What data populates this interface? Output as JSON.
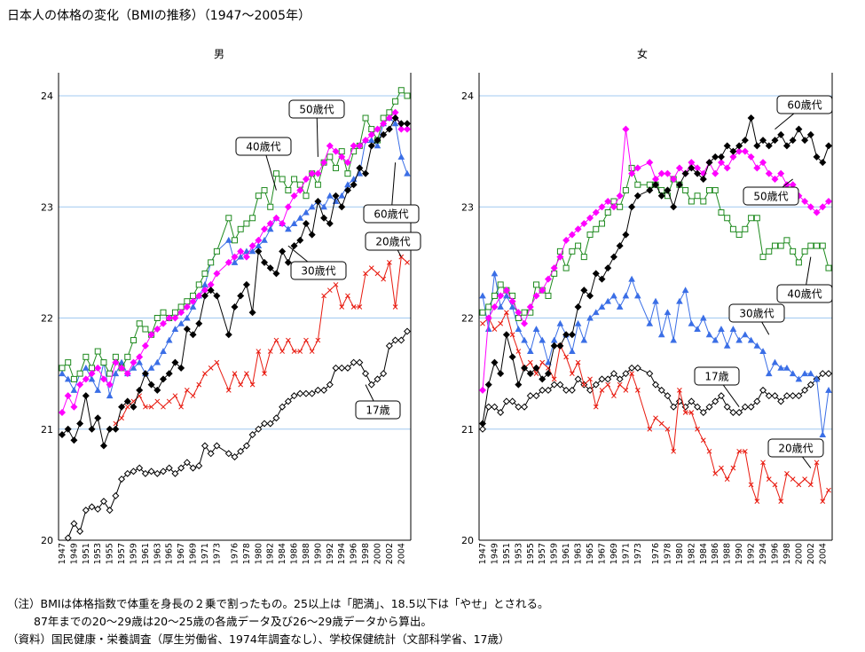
{
  "title": "日本人の体格の変化（BMIの推移）（1947〜2005年）",
  "notes": [
    "（注）BMIは体格指数で体重を身長の２乗で割ったもの。25以上は「肥満」、18.5以下は「やせ」とされる。",
    "87年までの20〜29歳は20〜25歳の各歳データ及び26〜29歳データから算出。",
    "（資料）国民健康・栄養調査（厚生労働省、1974年調査なし）、学校保健統計（文部科学省、17歳）"
  ],
  "colors": {
    "age17": "#000000",
    "age20": "#e8190e",
    "age30": "#3a6ee6",
    "age40": "#1e8a1e",
    "age50": "#ff00ff",
    "age60": "#000000",
    "grid": "#a0c8f0"
  },
  "chart_data": [
    {
      "type": "line",
      "title": "男",
      "ylim": [
        20,
        24
      ],
      "yticks": [
        "20",
        "21",
        "22",
        "23",
        "24"
      ],
      "xlabels": [
        "1947",
        "1949",
        "1951",
        "1953",
        "1955",
        "1957",
        "1959",
        "1961",
        "1963",
        "1965",
        "1967",
        "1969",
        "1971",
        "1973",
        "1976",
        "1978",
        "1980",
        "1982",
        "1984",
        "1986",
        "1988",
        "1990",
        "1992",
        "1994",
        "1996",
        "1998",
        "2000",
        "2002",
        "2004"
      ],
      "x": [
        1947,
        1948,
        1949,
        1950,
        1951,
        1952,
        1953,
        1954,
        1955,
        1956,
        1957,
        1958,
        1959,
        1960,
        1961,
        1962,
        1963,
        1964,
        1965,
        1966,
        1967,
        1968,
        1969,
        1970,
        1971,
        1972,
        1973,
        1975,
        1976,
        1977,
        1978,
        1979,
        1980,
        1981,
        1982,
        1983,
        1984,
        1985,
        1986,
        1987,
        1988,
        1989,
        1990,
        1991,
        1992,
        1993,
        1994,
        1995,
        1996,
        1997,
        1998,
        1999,
        2000,
        2001,
        2002,
        2003,
        2004,
        2005
      ],
      "series": [
        {
          "name": "17歳",
          "key": "age17",
          "marker": "diamond-open",
          "values": [
            null,
            20.02,
            20.15,
            20.08,
            20.27,
            20.3,
            20.28,
            20.35,
            20.27,
            20.4,
            20.55,
            20.6,
            20.62,
            20.65,
            20.6,
            20.62,
            20.6,
            20.62,
            20.65,
            20.6,
            20.65,
            20.7,
            20.65,
            20.67,
            20.85,
            20.78,
            20.85,
            20.78,
            20.75,
            20.8,
            20.85,
            20.95,
            21.0,
            21.05,
            21.05,
            21.1,
            21.2,
            21.25,
            21.3,
            21.32,
            21.32,
            21.32,
            21.35,
            21.35,
            21.4,
            21.55,
            21.55,
            21.55,
            21.6,
            21.6,
            21.5,
            21.4,
            21.45,
            21.5,
            21.75,
            21.8,
            21.8,
            21.88
          ]
        },
        {
          "name": "20歳代",
          "key": "age20",
          "marker": "x",
          "values": [
            null,
            null,
            null,
            null,
            null,
            null,
            null,
            null,
            null,
            21.05,
            21.1,
            21.2,
            21.25,
            21.3,
            21.2,
            21.2,
            21.25,
            21.2,
            21.25,
            21.3,
            21.2,
            21.35,
            21.3,
            21.4,
            21.5,
            21.55,
            21.6,
            21.35,
            21.5,
            21.4,
            21.5,
            21.4,
            21.7,
            21.5,
            21.7,
            21.8,
            21.7,
            21.8,
            21.7,
            21.7,
            21.8,
            21.7,
            21.8,
            22.2,
            22.25,
            22.3,
            22.1,
            22.2,
            22.1,
            22.1,
            22.4,
            22.45,
            22.4,
            22.35,
            22.5,
            22.1,
            22.55,
            22.5
          ]
        },
        {
          "name": "30歳代",
          "key": "age30",
          "marker": "triangle",
          "values": [
            21.5,
            21.45,
            21.35,
            21.5,
            21.55,
            21.45,
            21.35,
            21.6,
            21.3,
            21.5,
            21.6,
            21.5,
            21.55,
            21.6,
            21.5,
            21.55,
            21.6,
            21.7,
            21.8,
            21.9,
            21.95,
            22.0,
            22.1,
            22.2,
            22.3,
            22.5,
            22.6,
            22.7,
            22.5,
            22.55,
            22.6,
            22.6,
            22.65,
            22.7,
            22.8,
            22.9,
            22.85,
            22.8,
            22.85,
            22.9,
            22.95,
            23.0,
            23.05,
            23.0,
            23.1,
            23.05,
            23.1,
            23.2,
            23.25,
            23.3,
            23.6,
            23.6,
            23.55,
            23.75,
            23.8,
            23.75,
            23.45,
            23.3
          ]
        },
        {
          "name": "40歳代",
          "key": "age40",
          "marker": "square-open",
          "values": [
            21.55,
            21.6,
            21.45,
            21.5,
            21.65,
            21.55,
            21.7,
            21.6,
            21.5,
            21.65,
            21.55,
            21.65,
            21.8,
            21.95,
            21.9,
            21.85,
            22.0,
            22.05,
            22.0,
            22.05,
            22.1,
            22.15,
            22.2,
            22.3,
            22.4,
            22.5,
            22.6,
            22.9,
            22.7,
            22.8,
            22.85,
            22.9,
            23.1,
            23.15,
            23.0,
            23.3,
            23.25,
            23.15,
            23.25,
            23.2,
            23.1,
            23.3,
            23.2,
            23.4,
            23.45,
            23.35,
            23.5,
            23.3,
            23.5,
            23.55,
            23.8,
            23.7,
            23.6,
            23.8,
            23.85,
            23.95,
            24.05,
            24.0
          ]
        },
        {
          "name": "50歳代",
          "key": "age50",
          "marker": "diamond",
          "values": [
            21.15,
            21.3,
            21.2,
            21.4,
            21.45,
            21.5,
            21.55,
            21.45,
            21.4,
            21.6,
            21.55,
            21.5,
            21.6,
            21.65,
            21.75,
            21.85,
            21.9,
            21.95,
            22.0,
            22.0,
            22.05,
            22.1,
            22.15,
            22.2,
            22.25,
            22.3,
            22.4,
            22.5,
            22.55,
            22.6,
            22.55,
            22.65,
            22.7,
            22.8,
            22.85,
            22.9,
            22.85,
            23.0,
            23.1,
            23.15,
            23.25,
            23.3,
            23.3,
            23.4,
            23.55,
            23.5,
            23.45,
            23.4,
            23.55,
            23.55,
            23.6,
            23.65,
            23.7,
            23.75,
            23.8,
            23.85,
            23.7,
            23.7
          ]
        },
        {
          "name": "60歳代",
          "key": "age60",
          "marker": "diamond",
          "values": [
            20.95,
            21.0,
            20.9,
            21.05,
            21.3,
            21.0,
            21.1,
            20.85,
            21.0,
            21.0,
            21.2,
            21.25,
            21.2,
            21.35,
            21.5,
            21.4,
            21.35,
            21.45,
            21.5,
            21.6,
            21.55,
            21.9,
            21.85,
            21.95,
            22.2,
            22.25,
            22.2,
            21.85,
            22.1,
            22.2,
            22.3,
            22.05,
            22.6,
            22.5,
            22.45,
            22.4,
            22.6,
            22.5,
            22.65,
            22.7,
            22.85,
            22.75,
            23.05,
            22.9,
            22.85,
            23.1,
            23.0,
            23.15,
            23.2,
            23.35,
            23.3,
            23.55,
            23.6,
            23.65,
            23.7,
            23.8,
            23.75,
            23.75
          ]
        }
      ],
      "callouts": [
        {
          "text": "50歳代",
          "series": "age50"
        },
        {
          "text": "40歳代",
          "series": "age40"
        },
        {
          "text": "60歳代",
          "series": "age60"
        },
        {
          "text": "20歳代",
          "series": "age20"
        },
        {
          "text": "30歳代",
          "series": "age30"
        },
        {
          "text": "17歳",
          "series": "age17"
        }
      ]
    },
    {
      "type": "line",
      "title": "女",
      "ylim": [
        20,
        24
      ],
      "yticks": [
        "20",
        "21",
        "22",
        "23",
        "24"
      ],
      "xlabels": [
        "1947",
        "1949",
        "1951",
        "1953",
        "1955",
        "1957",
        "1959",
        "1961",
        "1963",
        "1965",
        "1967",
        "1969",
        "1971",
        "1973",
        "1976",
        "1978",
        "1980",
        "1982",
        "1984",
        "1986",
        "1988",
        "1990",
        "1992",
        "1994",
        "1996",
        "1998",
        "2000",
        "2002",
        "2004"
      ],
      "x": [
        1947,
        1948,
        1949,
        1950,
        1951,
        1952,
        1953,
        1954,
        1955,
        1956,
        1957,
        1958,
        1959,
        1960,
        1961,
        1962,
        1963,
        1964,
        1965,
        1966,
        1967,
        1968,
        1969,
        1970,
        1971,
        1972,
        1973,
        1975,
        1976,
        1977,
        1978,
        1979,
        1980,
        1981,
        1982,
        1983,
        1984,
        1985,
        1986,
        1987,
        1988,
        1989,
        1990,
        1991,
        1992,
        1993,
        1994,
        1995,
        1996,
        1997,
        1998,
        1999,
        2000,
        2001,
        2002,
        2003,
        2004,
        2005
      ],
      "series": [
        {
          "name": "17歳",
          "key": "age17",
          "marker": "diamond-open",
          "values": [
            21.0,
            21.2,
            21.2,
            21.15,
            21.25,
            21.25,
            21.2,
            21.2,
            21.3,
            21.3,
            21.35,
            21.35,
            21.4,
            21.4,
            21.35,
            21.35,
            21.45,
            21.4,
            21.35,
            21.4,
            21.45,
            21.45,
            21.5,
            21.45,
            21.5,
            21.55,
            21.55,
            21.5,
            21.4,
            21.35,
            21.3,
            21.2,
            21.25,
            21.2,
            21.25,
            21.2,
            21.15,
            21.2,
            21.25,
            21.3,
            21.2,
            21.15,
            21.15,
            21.2,
            21.2,
            21.25,
            21.35,
            21.3,
            21.3,
            21.25,
            21.3,
            21.3,
            21.3,
            21.35,
            21.4,
            21.45,
            21.5,
            21.5
          ]
        },
        {
          "name": "20歳代",
          "key": "age20",
          "marker": "x",
          "values": [
            21.95,
            22.0,
            21.9,
            21.95,
            22.05,
            21.85,
            21.7,
            21.55,
            21.6,
            21.5,
            21.6,
            21.55,
            21.45,
            21.75,
            21.65,
            21.5,
            21.6,
            21.4,
            21.45,
            21.2,
            21.35,
            21.4,
            21.3,
            21.4,
            21.35,
            21.5,
            21.35,
            21.0,
            21.1,
            21.05,
            21.0,
            20.8,
            21.35,
            21.15,
            21.15,
            21.0,
            20.9,
            20.8,
            20.6,
            20.65,
            20.55,
            20.65,
            20.8,
            20.8,
            20.5,
            20.35,
            20.7,
            20.55,
            20.5,
            20.35,
            20.6,
            20.55,
            20.5,
            20.55,
            20.5,
            20.7,
            20.35,
            20.45
          ]
        },
        {
          "name": "30歳代",
          "key": "age30",
          "marker": "triangle",
          "values": [
            22.2,
            21.9,
            22.4,
            22.1,
            22.2,
            22.1,
            21.9,
            21.8,
            21.7,
            21.9,
            21.8,
            21.6,
            21.8,
            21.95,
            21.85,
            21.7,
            21.95,
            21.8,
            22.0,
            22.05,
            22.1,
            22.15,
            22.2,
            22.1,
            22.2,
            22.35,
            22.2,
            21.95,
            22.15,
            21.85,
            22.05,
            21.8,
            22.15,
            22.25,
            21.95,
            21.9,
            22.0,
            21.85,
            21.8,
            21.9,
            21.75,
            21.9,
            21.8,
            21.85,
            21.8,
            21.75,
            21.7,
            21.5,
            21.6,
            21.55,
            21.55,
            21.5,
            21.45,
            21.5,
            21.5,
            21.45,
            20.95,
            21.35
          ]
        },
        {
          "name": "40歳代",
          "key": "age40",
          "marker": "square-open",
          "values": [
            22.05,
            22.1,
            22.2,
            22.3,
            22.25,
            22.2,
            22.0,
            22.05,
            22.05,
            22.3,
            22.25,
            22.2,
            22.4,
            22.6,
            22.45,
            22.6,
            22.65,
            22.55,
            22.75,
            22.8,
            22.85,
            22.95,
            23.05,
            23.0,
            23.15,
            23.35,
            23.2,
            23.2,
            23.2,
            23.15,
            23.1,
            23.25,
            23.2,
            23.15,
            23.05,
            23.1,
            23.05,
            23.15,
            23.15,
            22.95,
            22.9,
            22.8,
            22.75,
            22.8,
            22.9,
            22.9,
            22.55,
            22.6,
            22.65,
            22.65,
            22.7,
            22.6,
            22.5,
            22.6,
            22.65,
            22.65,
            22.65,
            22.45
          ]
        },
        {
          "name": "50歳代",
          "key": "age50",
          "marker": "diamond",
          "values": [
            21.35,
            22.0,
            22.1,
            22.2,
            22.25,
            22.15,
            22.05,
            21.95,
            22.1,
            22.2,
            22.25,
            22.35,
            22.45,
            22.55,
            22.7,
            22.75,
            22.8,
            22.85,
            22.9,
            22.95,
            23.0,
            23.05,
            23.0,
            23.1,
            23.7,
            23.3,
            23.35,
            23.4,
            23.25,
            23.3,
            23.3,
            23.25,
            23.35,
            23.3,
            23.4,
            23.35,
            23.3,
            23.4,
            23.3,
            23.4,
            23.35,
            23.45,
            23.5,
            23.5,
            23.45,
            23.35,
            23.4,
            23.3,
            23.25,
            23.3,
            23.2,
            23.2,
            23.1,
            23.05,
            23.0,
            22.95,
            23.0,
            23.05
          ]
        },
        {
          "name": "60歳代",
          "key": "age60",
          "marker": "diamond",
          "values": [
            21.05,
            21.4,
            21.6,
            21.5,
            21.85,
            21.65,
            21.4,
            21.55,
            21.5,
            21.55,
            21.45,
            21.5,
            21.75,
            21.75,
            21.85,
            21.85,
            22.1,
            22.25,
            22.2,
            22.4,
            22.35,
            22.45,
            22.55,
            22.65,
            22.75,
            23.0,
            23.1,
            23.15,
            23.2,
            23.1,
            23.15,
            23.0,
            23.2,
            23.3,
            23.35,
            23.3,
            23.25,
            23.4,
            23.45,
            23.45,
            23.55,
            23.5,
            23.55,
            23.6,
            23.8,
            23.55,
            23.6,
            23.55,
            23.6,
            23.65,
            23.55,
            23.6,
            23.7,
            23.6,
            23.65,
            23.45,
            23.4,
            23.55
          ]
        }
      ],
      "callouts": [
        {
          "text": "60歳代",
          "series": "age60"
        },
        {
          "text": "50歳代",
          "series": "age50"
        },
        {
          "text": "40歳代",
          "series": "age40"
        },
        {
          "text": "30歳代",
          "series": "age30"
        },
        {
          "text": "17歳",
          "series": "age17"
        },
        {
          "text": "20歳代",
          "series": "age20"
        }
      ]
    }
  ]
}
